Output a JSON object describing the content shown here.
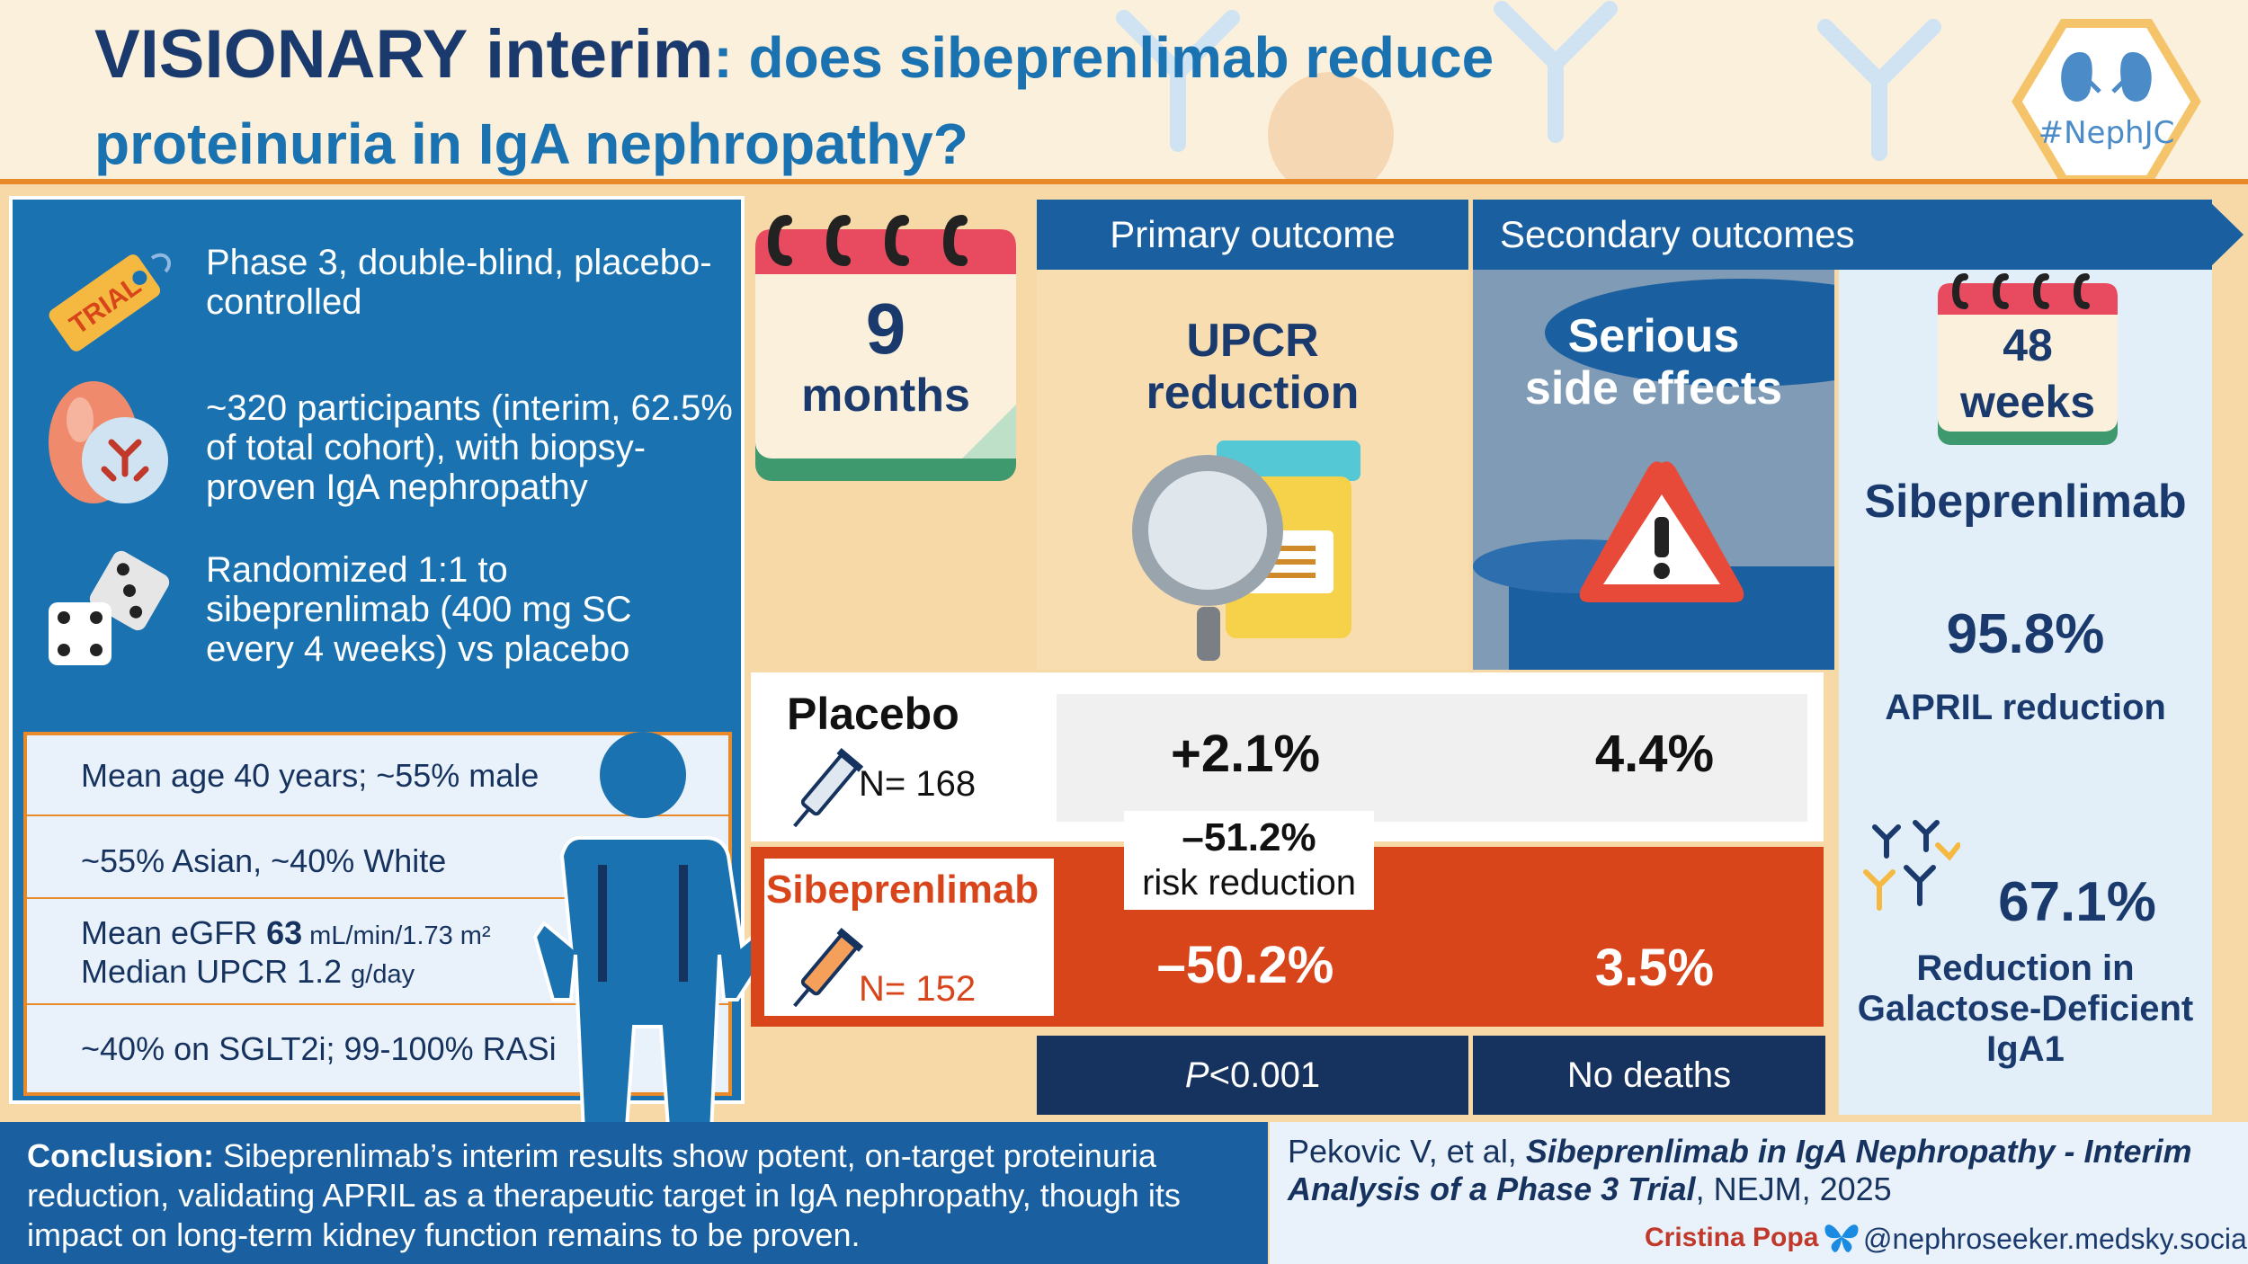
{
  "header": {
    "title_part1": "VISIONARY interim",
    "title_part2": ": does sibeprenlimab reduce",
    "title_part3": "proteinuria in IgA nephropathy?",
    "logo_text": "#NephJC"
  },
  "design": {
    "items": [
      {
        "icon": "trial-tag-icon",
        "tag": "TRIAL",
        "text": "Phase 3, double-blind, placebo-controlled"
      },
      {
        "icon": "kidney-antibody-icon",
        "text": "~320 participants (interim, 62.5% of total cohort), with biopsy-proven IgA nephropathy"
      },
      {
        "icon": "dice-icon",
        "text": "Randomized 1:1 to sibeprenlimab (400 mg SC every 4 weeks) vs placebo"
      }
    ]
  },
  "baseline": {
    "row1": "Mean age 40 years; ~55% male",
    "row2": "~55% Asian, ~40% White",
    "row3_prefix": "Mean eGFR ",
    "row3_value": "63",
    "row3_unit": " mL/min/1.73 m²",
    "row3b_prefix": "Median UPCR 1.2 ",
    "row3b_unit": "g/day",
    "row4": "~40% on SGLT2i; 99-100% RASi"
  },
  "duration": {
    "value": "9",
    "unit": "months"
  },
  "outcomes": {
    "primary_header": "Primary outcome",
    "secondary_header": "Secondary outcomes",
    "primary_label_1": "UPCR",
    "primary_label_2": "reduction",
    "secondary_label_1": "Serious",
    "secondary_label_2": "side effects"
  },
  "groups": {
    "placebo": {
      "name": "Placebo",
      "n": "N= 168",
      "upcr": "+2.1%",
      "sae": "4.4%"
    },
    "drug": {
      "name": "Sibeprenlimab",
      "n": "N= 152",
      "upcr": "–50.2%",
      "sae": "3.5%"
    }
  },
  "risk_reduction": {
    "value": "–51.2%",
    "label": "risk reduction"
  },
  "stats": {
    "p_italic": "P",
    "p_rest": "<0.001",
    "deaths": "No deaths"
  },
  "right_column": {
    "duration_value": "48",
    "duration_unit": "weeks",
    "drug": "Sibeprenlimab",
    "april_value": "95.8%",
    "april_label": "APRIL reduction",
    "gd_value": "67.1%",
    "gd_label_1": "Reduction in",
    "gd_label_2": "Galactose-Deficient",
    "gd_label_3": "IgA1"
  },
  "conclusion": {
    "lead": "Conclusion:",
    "text": " Sibeprenlimab’s interim results show potent, on-target proteinuria reduction, validating APRIL as a therapeutic target in IgA nephropathy, though its impact on long-term kidney function remains to be proven."
  },
  "citation": {
    "authors": "Pekovic V, et al, ",
    "title": "Sibeprenlimab in IgA Nephropathy - Interim Analysis of a Phase 3 Trial",
    "journal": ", NEJM, 2025",
    "author_credit": "Cristina Popa",
    "handle": "@nephroseeker.medsky.social"
  },
  "colors": {
    "navy": "#1a3a6e",
    "blue": "#1a72b0",
    "orange": "#e98a2a",
    "drug_red": "#d9451a"
  }
}
